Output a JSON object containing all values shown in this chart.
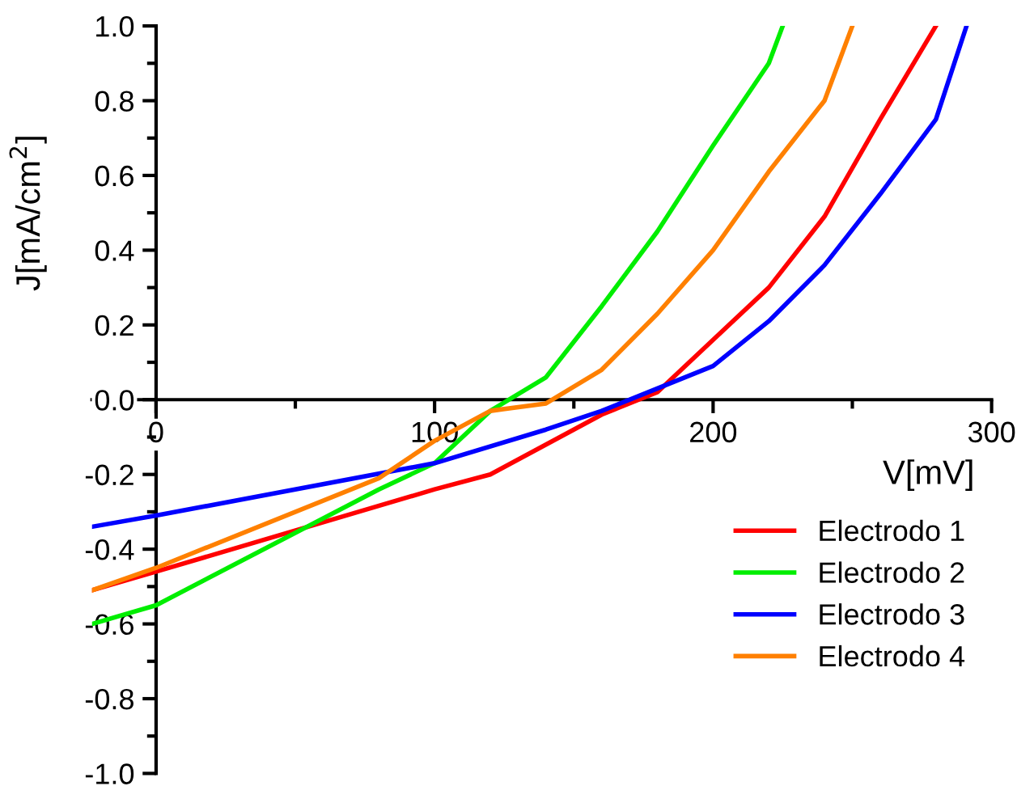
{
  "chart_data": {
    "type": "line",
    "xlabel": "V[mV]",
    "ylabel": "J[mA/cm$^{2}$]",
    "xlim": [
      -23,
      300
    ],
    "ylim": [
      -1.0,
      1.0
    ],
    "xticks": [
      0,
      100,
      200,
      300
    ],
    "yticks": [
      {
        "value": -1.0,
        "label": "-1.0"
      },
      {
        "value": -0.8,
        "label": "-0.8"
      },
      {
        "value": -0.6,
        "label": "-0.6"
      },
      {
        "value": -0.4,
        "label": "-0.4"
      },
      {
        "value": -0.2,
        "label": "-0.2"
      },
      {
        "value": 0.0,
        "label": "0.0"
      },
      {
        "value": 0.2,
        "label": "0.2"
      },
      {
        "value": 0.4,
        "label": "0.4"
      },
      {
        "value": 0.6,
        "label": "0.6"
      },
      {
        "value": 0.8,
        "label": "0.8"
      },
      {
        "value": 1.0,
        "label": "1.0"
      }
    ],
    "grid": false,
    "legend": "bottom right",
    "marker": "none",
    "line_style": "solid",
    "series": [
      {
        "name": "Electrodo 1",
        "color": "#ff0000",
        "x": [
          -23,
          0,
          100,
          120,
          140,
          160,
          180,
          200,
          220,
          240,
          260,
          280
        ],
        "values": [
          -0.51,
          -0.46,
          -0.24,
          -0.2,
          -0.12,
          -0.04,
          0.02,
          0.16,
          0.3,
          0.49,
          0.75,
          1.0
        ]
      },
      {
        "name": "Electrodo 2",
        "color": "#00ee00",
        "x": [
          -23,
          0,
          80,
          100,
          120,
          140,
          160,
          180,
          200,
          220,
          225
        ],
        "values": [
          -0.6,
          -0.55,
          -0.24,
          -0.17,
          -0.03,
          0.06,
          0.25,
          0.45,
          0.68,
          0.9,
          1.0
        ]
      },
      {
        "name": "Electrodo 3",
        "color": "#0000ff",
        "x": [
          -23,
          0,
          100,
          140,
          160,
          180,
          200,
          220,
          240,
          260,
          280,
          291
        ],
        "values": [
          -0.34,
          -0.31,
          -0.17,
          -0.08,
          -0.03,
          0.03,
          0.09,
          0.21,
          0.36,
          0.55,
          0.75,
          1.0
        ]
      },
      {
        "name": "Electrodo 4",
        "color": "#ff8000",
        "x": [
          -23,
          0,
          80,
          100,
          120,
          140,
          160,
          180,
          200,
          220,
          240,
          250
        ],
        "values": [
          -0.51,
          -0.45,
          -0.21,
          -0.11,
          -0.03,
          -0.01,
          0.08,
          0.23,
          0.4,
          0.61,
          0.8,
          1.0
        ]
      }
    ]
  }
}
